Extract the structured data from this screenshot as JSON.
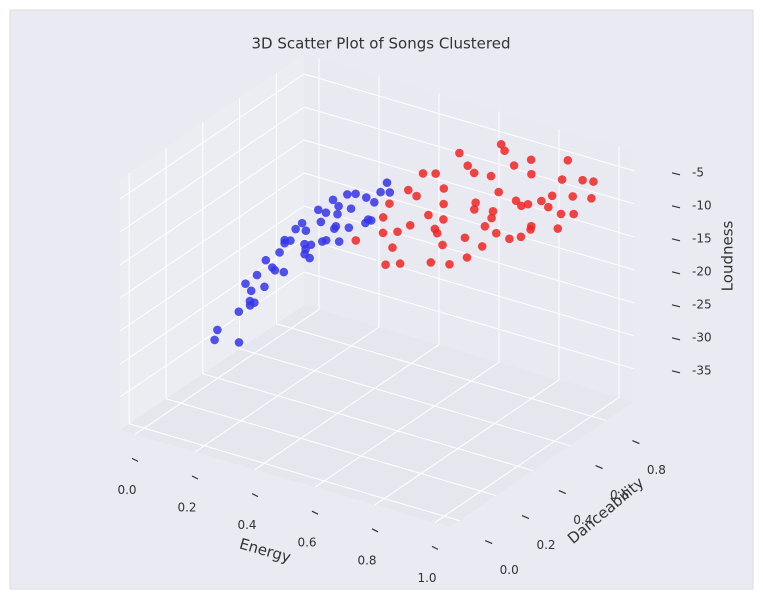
{
  "chart_data": {
    "type": "scatter3d",
    "title": "3D Scatter Plot of Songs Clustered",
    "xlabel": "Energy",
    "ylabel": "Danceability",
    "zlabel": "Loudness",
    "xlim": [
      -0.05,
      1.05
    ],
    "ylim": [
      -0.05,
      0.95
    ],
    "zlim": [
      -40,
      -2
    ],
    "xticks": [
      {
        "value": 0,
        "label": "0.0"
      },
      0.2,
      0.4,
      0.6,
      0.8,
      {
        "value": 1,
        "label": "1.0"
      }
    ],
    "yticks": [
      {
        "value": 0,
        "label": "0.0"
      },
      0.2,
      0.4,
      0.6,
      0.8
    ],
    "zticks": [
      -35,
      -30,
      -25,
      -20,
      -15,
      -10,
      -5
    ],
    "grid": true,
    "series": [
      {
        "color": "#3535e8",
        "x": [
          0.02,
          0.05,
          0.08,
          0.1,
          0.12,
          0.15,
          0.18,
          0.2,
          0.22,
          0.25,
          0.28,
          0.3,
          0.32,
          0.35,
          0.38,
          0.4,
          0.42,
          0.44,
          0.06,
          0.1,
          0.14,
          0.18,
          0.22,
          0.26,
          0.3,
          0.34,
          0.38,
          0.42,
          0.12,
          0.16,
          0.2,
          0.24,
          0.28,
          0.32,
          0.36,
          0.4,
          0.08,
          0.15,
          0.25,
          0.35,
          0.45,
          0.04,
          0.1,
          0.2,
          0.3,
          0.03,
          0.07,
          0.17,
          0.27,
          0.37
        ],
        "y": [
          0.35,
          0.5,
          0.42,
          0.6,
          0.38,
          0.55,
          0.47,
          0.62,
          0.4,
          0.58,
          0.45,
          0.66,
          0.52,
          0.48,
          0.7,
          0.55,
          0.6,
          0.5,
          0.3,
          0.45,
          0.63,
          0.36,
          0.52,
          0.68,
          0.41,
          0.57,
          0.44,
          0.65,
          0.54,
          0.4,
          0.7,
          0.48,
          0.6,
          0.35,
          0.62,
          0.46,
          0.58,
          0.33,
          0.56,
          0.68,
          0.5,
          0.45,
          0.66,
          0.37,
          0.5,
          0.55,
          0.4,
          0.6,
          0.52,
          0.43
        ],
        "z": [
          -33,
          -28,
          -25,
          -22,
          -27,
          -20,
          -18,
          -16,
          -21,
          -15,
          -17,
          -13,
          -15,
          -12,
          -11,
          -14,
          -10,
          -12,
          -30,
          -24,
          -19,
          -23,
          -17,
          -14,
          -18,
          -13,
          -15,
          -11,
          -22,
          -20,
          -16,
          -18,
          -14,
          -16,
          -12,
          -13,
          -26,
          -25,
          -19,
          -14,
          -12,
          -35,
          -21,
          -20,
          -17,
          -31,
          -29,
          -22,
          -15,
          -13
        ]
      },
      {
        "color": "#ee2424",
        "x": [
          0.46,
          0.48,
          0.5,
          0.52,
          0.54,
          0.56,
          0.58,
          0.6,
          0.62,
          0.64,
          0.66,
          0.68,
          0.7,
          0.72,
          0.74,
          0.76,
          0.78,
          0.8,
          0.82,
          0.84,
          0.86,
          0.88,
          0.9,
          0.92,
          0.94,
          0.96,
          0.98,
          1.0,
          0.5,
          0.55,
          0.6,
          0.65,
          0.7,
          0.75,
          0.8,
          0.85,
          0.9,
          0.95,
          0.53,
          0.57,
          0.63,
          0.67,
          0.73,
          0.77,
          0.83,
          0.87,
          0.93,
          0.97,
          0.49,
          0.59,
          0.69,
          0.79,
          0.89,
          0.99,
          0.61,
          0.71,
          0.81,
          0.91,
          0.65,
          0.75
        ],
        "y": [
          0.4,
          0.55,
          0.7,
          0.45,
          0.6,
          0.8,
          0.5,
          0.65,
          0.38,
          0.75,
          0.55,
          0.85,
          0.48,
          0.62,
          0.72,
          0.42,
          0.58,
          0.8,
          0.5,
          0.68,
          0.9,
          0.55,
          0.75,
          0.6,
          0.85,
          0.7,
          0.65,
          0.8,
          0.62,
          0.48,
          0.78,
          0.52,
          0.66,
          0.88,
          0.45,
          0.7,
          0.58,
          0.78,
          0.72,
          0.42,
          0.6,
          0.5,
          0.82,
          0.64,
          0.56,
          0.74,
          0.68,
          0.86,
          0.5,
          0.35,
          0.76,
          0.6,
          0.82,
          0.72,
          0.55,
          0.4,
          0.7,
          0.62,
          0.88,
          0.52
        ],
        "z": [
          -13,
          -10,
          -8,
          -12,
          -9,
          -6,
          -11,
          -8,
          -14,
          -7,
          -10,
          -5,
          -12,
          -9,
          -8,
          -13,
          -10,
          -6,
          -11,
          -8,
          -5,
          -10,
          -7,
          -9,
          -6,
          -8,
          -9,
          -7,
          -9,
          -12,
          -7,
          -11,
          -9,
          -6,
          -12,
          -8,
          -10,
          -7,
          -8,
          -13,
          -9,
          -11,
          -6,
          -9,
          -10,
          -8,
          -7,
          -6,
          -11,
          -14,
          -7,
          -9,
          -6,
          -8,
          -10,
          -13,
          -8,
          -9,
          -5,
          -11
        ]
      }
    ]
  }
}
